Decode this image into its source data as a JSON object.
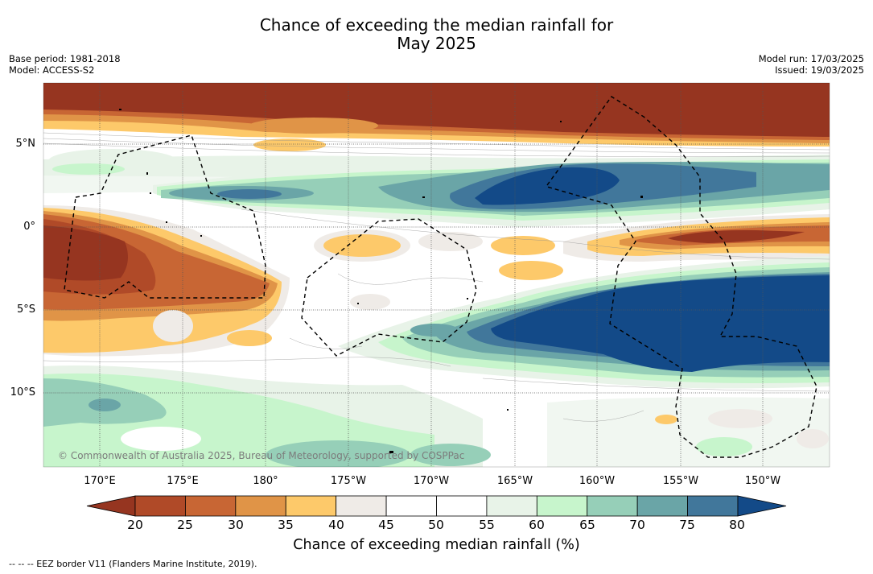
{
  "title_line1": "Chance of exceeding the median rainfall for",
  "title_line2": "May 2025",
  "meta_left": {
    "base_period": "Base period: 1981-2018",
    "model": "Model: ACCESS-S2"
  },
  "meta_right": {
    "model_run": "Model run: 17/03/2025",
    "issued": "Issued: 19/03/2025"
  },
  "lat_labels": [
    "5°N",
    "0°",
    "5°S",
    "10°S"
  ],
  "lon_labels": [
    "170°E",
    "175°E",
    "180°",
    "175°W",
    "170°W",
    "165°W",
    "160°W",
    "155°W",
    "150°W"
  ],
  "copyright": "© Commonwealth of Australia 2025, Bureau of Meteorology, supported by COSPPac",
  "colorbar": {
    "ticks": [
      "20",
      "25",
      "30",
      "35",
      "40",
      "45",
      "50",
      "55",
      "60",
      "65",
      "70",
      "75",
      "80"
    ],
    "colors": [
      "#963520",
      "#b04a28",
      "#c86634",
      "#e09447",
      "#fdc96a",
      "#efebe7",
      "#ffffff",
      "#ffffff",
      "#e8f3e8",
      "#c7f5cc",
      "#96cfb8",
      "#6aa5a7",
      "#41779b",
      "#134a88"
    ],
    "label": "Chance of exceeding median rainfall (%)"
  },
  "eez_note": "--  --  -- EEZ border V11 (Flanders Marine Institute, 2019)."
}
